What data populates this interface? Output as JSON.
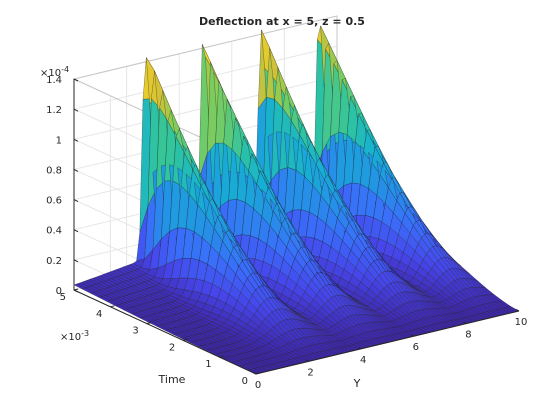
{
  "chart_data": {
    "type": "surface",
    "title": "Deflection at x = 5, z = 0.5",
    "xlabel": "Y",
    "ylabel": "Time",
    "zlabel": "",
    "x": {
      "range": [
        0,
        10
      ],
      "ticks": [
        0,
        2,
        4,
        6,
        8,
        10
      ],
      "tick_labels": [
        "0",
        "2",
        "4",
        "6",
        "8",
        "10"
      ]
    },
    "y": {
      "range": [
        0,
        0.005
      ],
      "ticks": [
        0,
        1,
        2,
        3,
        4,
        5
      ],
      "tick_labels": [
        "0",
        "1",
        "2",
        "3",
        "4",
        "5"
      ],
      "exponent_label": "×10",
      "exponent_power": "-3"
    },
    "z": {
      "range": [
        0,
        0.00014
      ],
      "ticks": [
        0,
        0.2,
        0.4,
        0.6,
        0.8,
        1,
        1.2,
        1.4
      ],
      "tick_labels": [
        "0",
        "0.2",
        "0.4",
        "0.6",
        "0.8",
        "1",
        "1.2",
        "1.4"
      ],
      "exponent_label": "×10",
      "exponent_power": "-4"
    },
    "surface": {
      "description_free": true,
      "ridge_y_positions": [
        2.7,
        4.9,
        7.1,
        9.3
      ],
      "ridge_peak_values_at_t_max": [
        0.000141,
        0.000138,
        0.000137,
        0.000139
      ],
      "grid": true,
      "colormap": "parula"
    },
    "colors": {
      "low": "#3e26a8",
      "mid": "#2db6aa",
      "high": "#f9d13b"
    }
  }
}
